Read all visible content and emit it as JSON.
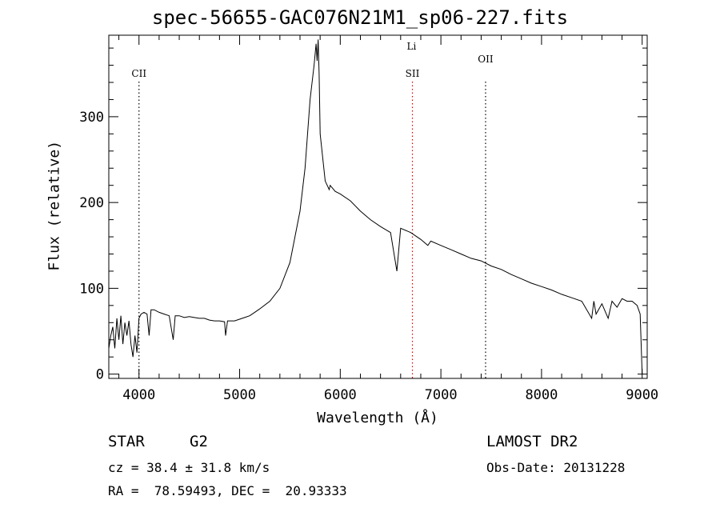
{
  "title": "spec-56655-GAC076N21M1_sp06-227.fits",
  "chart_data": {
    "type": "line",
    "xlabel": "Wavelength (Å)",
    "ylabel": "Flux (relative)",
    "xlim": [
      3700,
      9050
    ],
    "ylim": [
      -5,
      395
    ],
    "xticks": [
      4000,
      5000,
      6000,
      7000,
      8000,
      9000
    ],
    "yticks": [
      0,
      100,
      200,
      300
    ],
    "series": [
      {
        "x": [
          3700,
          3720,
          3740,
          3760,
          3780,
          3800,
          3820,
          3840,
          3860,
          3880,
          3900,
          3920,
          3940,
          3960,
          3980,
          4000,
          4020,
          4050,
          4080,
          4101,
          4120,
          4150,
          4200,
          4250,
          4300,
          4340,
          4360,
          4400,
          4450,
          4500,
          4550,
          4600,
          4650,
          4700,
          4750,
          4800,
          4850,
          4861,
          4880,
          4900,
          4950,
          5000,
          5050,
          5100,
          5150,
          5200,
          5300,
          5400,
          5500,
          5600,
          5650,
          5700,
          5720,
          5740,
          5760,
          5770,
          5780,
          5790,
          5800,
          5850,
          5890,
          5900,
          5950,
          6000,
          6100,
          6200,
          6300,
          6400,
          6500,
          6563,
          6600,
          6700,
          6800,
          6870,
          6900,
          7000,
          7100,
          7200,
          7300,
          7400,
          7500,
          7600,
          7700,
          7800,
          7900,
          8000,
          8100,
          8200,
          8300,
          8400,
          8498,
          8520,
          8542,
          8600,
          8662,
          8700,
          8750,
          8800,
          8850,
          8900,
          8950,
          8980,
          9000
        ],
        "y": [
          30,
          45,
          55,
          30,
          65,
          40,
          68,
          35,
          60,
          45,
          62,
          35,
          20,
          45,
          25,
          65,
          70,
          72,
          70,
          45,
          75,
          75,
          72,
          70,
          68,
          40,
          68,
          68,
          66,
          67,
          66,
          65,
          65,
          63,
          62,
          62,
          61,
          45,
          62,
          62,
          62,
          64,
          66,
          68,
          72,
          76,
          85,
          100,
          130,
          190,
          240,
          320,
          340,
          360,
          385,
          365,
          390,
          350,
          280,
          225,
          215,
          220,
          213,
          210,
          202,
          190,
          180,
          172,
          165,
          120,
          170,
          165,
          157,
          150,
          155,
          150,
          145,
          140,
          135,
          132,
          126,
          122,
          116,
          111,
          106,
          102,
          98,
          93,
          89,
          85,
          65,
          85,
          70,
          82,
          65,
          85,
          78,
          88,
          85,
          85,
          80,
          70,
          0
        ]
      }
    ],
    "lines": [
      {
        "label": "CII",
        "x": 4000,
        "color": "#000000"
      },
      {
        "label": "SII",
        "x": 6717,
        "color": "#e00000"
      },
      {
        "label": "Li",
        "x": 6708,
        "color": "#e00000"
      },
      {
        "label": "OII",
        "x": 7444,
        "color": "#000000"
      }
    ],
    "grid": false
  },
  "info": {
    "object_class": "STAR",
    "subclass": "G2",
    "survey": "LAMOST DR2",
    "cz_line": "cz = 38.4 ± 31.8 km/s",
    "obs_date_line": "Obs-Date: 20131228",
    "radec_line": "RA =  78.59493, DEC =  20.93333"
  }
}
